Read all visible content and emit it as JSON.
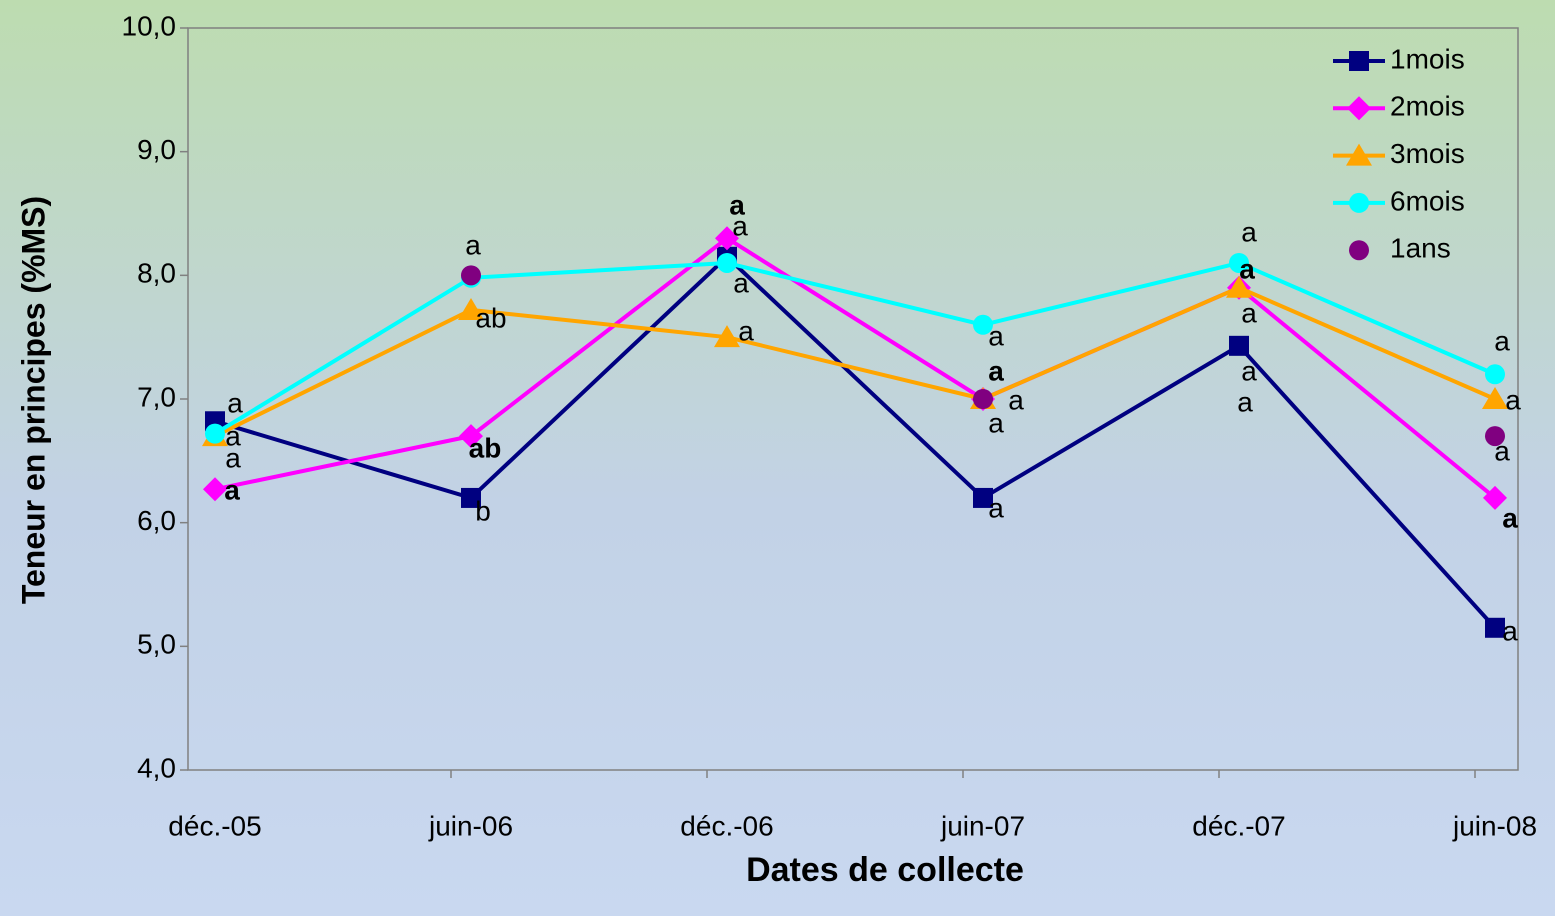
{
  "chart_data": {
    "type": "line",
    "xlabel": "Dates de collecte",
    "ylabel": "Teneur en principes (%MS)",
    "categories": [
      "déc.-05",
      "juin-06",
      "déc.-06",
      "juin-07",
      "déc.-07",
      "juin-08"
    ],
    "series": [
      {
        "name": "1mois",
        "color": "#000080",
        "marker": "square",
        "line": true,
        "values": [
          6.82,
          6.2,
          8.15,
          6.2,
          7.43,
          5.15
        ]
      },
      {
        "name": "2mois",
        "color": "#ff00ff",
        "marker": "diamond",
        "line": true,
        "values": [
          6.27,
          6.7,
          8.3,
          7.0,
          7.9,
          6.2
        ]
      },
      {
        "name": "3mois",
        "color": "#ffa500",
        "marker": "triangle",
        "line": true,
        "values": [
          6.7,
          7.72,
          7.5,
          7.0,
          7.9,
          7.0
        ]
      },
      {
        "name": "6mois",
        "color": "#00ffff",
        "marker": "circle",
        "line": true,
        "values": [
          6.72,
          7.98,
          8.1,
          7.6,
          8.1,
          7.2
        ]
      },
      {
        "name": "1ans",
        "color": "#800080",
        "marker": "circle",
        "line": false,
        "values": [
          null,
          8.0,
          null,
          7.0,
          null,
          6.7
        ]
      }
    ],
    "ylim": [
      4,
      10
    ],
    "yticks": [
      {
        "value": 4,
        "label": "4,0"
      },
      {
        "value": 5,
        "label": "5,0"
      },
      {
        "value": 6,
        "label": "6,0"
      },
      {
        "value": 7,
        "label": "7,0"
      },
      {
        "value": 8,
        "label": "8,0"
      },
      {
        "value": 9,
        "label": "9,0"
      },
      {
        "value": 10,
        "label": "10,0"
      }
    ],
    "legend": "upper right",
    "annotations": [
      "a",
      "a",
      "a",
      "a",
      "a",
      "ab",
      "ab",
      "b",
      "a",
      "a",
      "a",
      "a",
      "a",
      "a",
      "a",
      "a",
      "a",
      "a",
      "a",
      "a",
      "a",
      "a",
      "a",
      "a",
      "a",
      "a",
      "a"
    ]
  }
}
